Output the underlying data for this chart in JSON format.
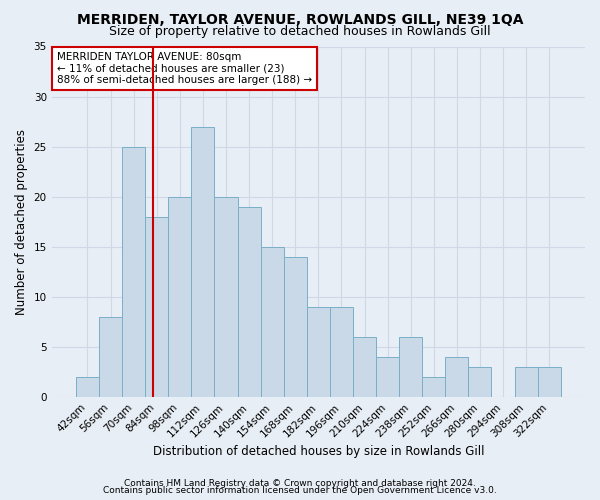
{
  "title1": "MERRIDEN, TAYLOR AVENUE, ROWLANDS GILL, NE39 1QA",
  "title2": "Size of property relative to detached houses in Rowlands Gill",
  "xlabel": "Distribution of detached houses by size in Rowlands Gill",
  "ylabel": "Number of detached properties",
  "categories": [
    "42sqm",
    "56sqm",
    "70sqm",
    "84sqm",
    "98sqm",
    "112sqm",
    "126sqm",
    "140sqm",
    "154sqm",
    "168sqm",
    "182sqm",
    "196sqm",
    "210sqm",
    "224sqm",
    "238sqm",
    "252sqm",
    "266sqm",
    "280sqm",
    "294sqm",
    "308sqm",
    "322sqm"
  ],
  "values": [
    2,
    8,
    25,
    18,
    20,
    27,
    20,
    19,
    15,
    14,
    9,
    9,
    6,
    4,
    6,
    2,
    4,
    3,
    0,
    3,
    3
  ],
  "bar_color": "#c9d9e8",
  "bar_edge_color": "#7aafc8",
  "grid_color": "#d0d8e8",
  "background_color": "#e8eef5",
  "annotation_box_text": "MERRIDEN TAYLOR AVENUE: 80sqm\n← 11% of detached houses are smaller (23)\n88% of semi-detached houses are larger (188) →",
  "annotation_box_color": "#ffffff",
  "annotation_box_edge": "#cc0000",
  "vline_color": "#cc0000",
  "vline_pos": 2.857,
  "ylim": [
    0,
    35
  ],
  "yticks": [
    0,
    5,
    10,
    15,
    20,
    25,
    30,
    35
  ],
  "footnote1": "Contains HM Land Registry data © Crown copyright and database right 2024.",
  "footnote2": "Contains public sector information licensed under the Open Government Licence v3.0.",
  "title1_fontsize": 10,
  "title2_fontsize": 9,
  "xlabel_fontsize": 8.5,
  "ylabel_fontsize": 8.5,
  "tick_fontsize": 7.5,
  "annotation_fontsize": 7.5,
  "footnote_fontsize": 6.5
}
